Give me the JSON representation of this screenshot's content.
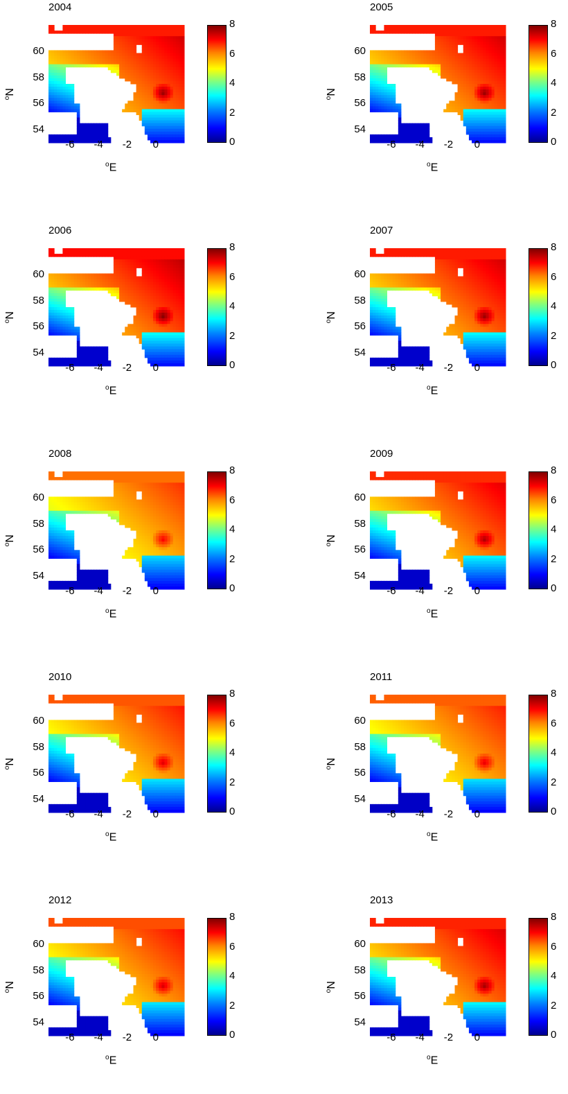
{
  "panels": [
    {
      "year": "2004",
      "intensity": 1.0
    },
    {
      "year": "2005",
      "intensity": 1.0
    },
    {
      "year": "2006",
      "intensity": 1.02
    },
    {
      "year": "2007",
      "intensity": 1.0
    },
    {
      "year": "2008",
      "intensity": 0.9
    },
    {
      "year": "2009",
      "intensity": 0.98
    },
    {
      "year": "2010",
      "intensity": 0.93
    },
    {
      "year": "2011",
      "intensity": 0.92
    },
    {
      "year": "2012",
      "intensity": 0.94
    },
    {
      "year": "2013",
      "intensity": 0.99
    }
  ],
  "axes": {
    "xlabel_sup": "o",
    "xlabel_main": "E",
    "ylabel_sup": "o",
    "ylabel_main": "N",
    "xticks": [
      "-6",
      "-4",
      "-2",
      "0"
    ],
    "yticks": [
      "60",
      "58",
      "56",
      "54"
    ],
    "xlim": [
      -7.5,
      2
    ],
    "ylim": [
      53,
      62
    ]
  },
  "colorbar": {
    "ticks": [
      "8",
      "6",
      "4",
      "2",
      "0"
    ],
    "range": [
      0,
      8
    ],
    "colormap": "jet"
  }
}
